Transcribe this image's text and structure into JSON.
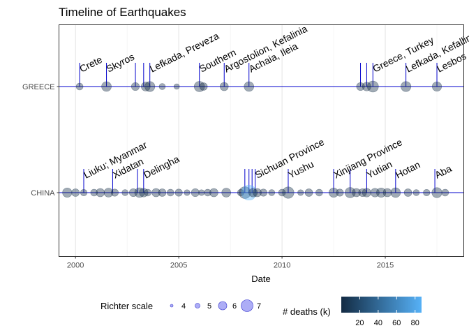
{
  "chart_data": {
    "type": "scatter",
    "title": "Timeline of Earthquakes",
    "xlabel": "Date",
    "ylabel": "",
    "xlim": [
      1999.2,
      2018.8
    ],
    "x_ticks": [
      2000,
      2005,
      2010,
      2015
    ],
    "categories": [
      "CHINA",
      "GREECE"
    ],
    "grid": true,
    "accent_color": "#0000cc",
    "points": [
      {
        "country": "GREECE",
        "x": 2000.2,
        "mag": 5.6,
        "deaths": 0
      },
      {
        "country": "GREECE",
        "x": 2001.5,
        "mag": 6.4,
        "deaths": 0
      },
      {
        "country": "GREECE",
        "x": 2002.9,
        "mag": 5.9,
        "deaths": 0
      },
      {
        "country": "GREECE",
        "x": 2003.4,
        "mag": 6.2,
        "deaths": 0
      },
      {
        "country": "GREECE",
        "x": 2003.6,
        "mag": 6.5,
        "deaths": 0
      },
      {
        "country": "GREECE",
        "x": 2004.2,
        "mag": 5.4,
        "deaths": 0
      },
      {
        "country": "GREECE",
        "x": 2004.9,
        "mag": 5.2,
        "deaths": 0
      },
      {
        "country": "GREECE",
        "x": 2006.0,
        "mag": 6.6,
        "deaths": 0
      },
      {
        "country": "GREECE",
        "x": 2006.2,
        "mag": 5.8,
        "deaths": 0
      },
      {
        "country": "GREECE",
        "x": 2007.2,
        "mag": 6.0,
        "deaths": 0
      },
      {
        "country": "GREECE",
        "x": 2008.4,
        "mag": 6.4,
        "deaths": 2
      },
      {
        "country": "GREECE",
        "x": 2013.8,
        "mag": 5.9,
        "deaths": 0
      },
      {
        "country": "GREECE",
        "x": 2014.1,
        "mag": 6.1,
        "deaths": 0
      },
      {
        "country": "GREECE",
        "x": 2014.4,
        "mag": 6.8,
        "deaths": 1
      },
      {
        "country": "GREECE",
        "x": 2016.0,
        "mag": 6.5,
        "deaths": 2
      },
      {
        "country": "GREECE",
        "x": 2017.5,
        "mag": 6.3,
        "deaths": 1
      },
      {
        "country": "CHINA",
        "x": 1999.6,
        "mag": 6.3,
        "deaths": 2
      },
      {
        "country": "CHINA",
        "x": 2000.0,
        "mag": 5.8,
        "deaths": 3
      },
      {
        "country": "CHINA",
        "x": 2000.4,
        "mag": 5.5,
        "deaths": 0
      },
      {
        "country": "CHINA",
        "x": 2000.9,
        "mag": 5.6,
        "deaths": 1
      },
      {
        "country": "CHINA",
        "x": 2001.2,
        "mag": 6.0,
        "deaths": 0
      },
      {
        "country": "CHINA",
        "x": 2001.6,
        "mag": 6.2,
        "deaths": 1
      },
      {
        "country": "CHINA",
        "x": 2001.9,
        "mag": 5.7,
        "deaths": 0
      },
      {
        "country": "CHINA",
        "x": 2002.4,
        "mag": 5.4,
        "deaths": 0
      },
      {
        "country": "CHINA",
        "x": 2002.8,
        "mag": 5.9,
        "deaths": 1
      },
      {
        "country": "CHINA",
        "x": 2003.1,
        "mag": 6.4,
        "deaths": 4
      },
      {
        "country": "CHINA",
        "x": 2003.3,
        "mag": 6.1,
        "deaths": 3
      },
      {
        "country": "CHINA",
        "x": 2003.5,
        "mag": 5.6,
        "deaths": 1
      },
      {
        "country": "CHINA",
        "x": 2003.9,
        "mag": 6.0,
        "deaths": 2
      },
      {
        "country": "CHINA",
        "x": 2004.2,
        "mag": 5.8,
        "deaths": 0
      },
      {
        "country": "CHINA",
        "x": 2004.6,
        "mag": 5.6,
        "deaths": 0
      },
      {
        "country": "CHINA",
        "x": 2005.0,
        "mag": 5.7,
        "deaths": 0
      },
      {
        "country": "CHINA",
        "x": 2005.4,
        "mag": 5.3,
        "deaths": 0
      },
      {
        "country": "CHINA",
        "x": 2005.8,
        "mag": 5.9,
        "deaths": 1
      },
      {
        "country": "CHINA",
        "x": 2006.1,
        "mag": 5.3,
        "deaths": 0
      },
      {
        "country": "CHINA",
        "x": 2006.4,
        "mag": 5.6,
        "deaths": 0
      },
      {
        "country": "CHINA",
        "x": 2006.7,
        "mag": 6.0,
        "deaths": 2
      },
      {
        "country": "CHINA",
        "x": 2007.3,
        "mag": 6.2,
        "deaths": 0
      },
      {
        "country": "CHINA",
        "x": 2008.0,
        "mag": 5.5,
        "deaths": 0
      },
      {
        "country": "CHINA",
        "x": 2008.2,
        "mag": 7.0,
        "deaths": 0
      },
      {
        "country": "CHINA",
        "x": 2008.4,
        "mag": 7.9,
        "deaths": 87
      },
      {
        "country": "CHINA",
        "x": 2008.6,
        "mag": 6.1,
        "deaths": 1
      },
      {
        "country": "CHINA",
        "x": 2008.8,
        "mag": 6.0,
        "deaths": 0
      },
      {
        "country": "CHINA",
        "x": 2009.1,
        "mag": 5.7,
        "deaths": 0
      },
      {
        "country": "CHINA",
        "x": 2009.5,
        "mag": 5.4,
        "deaths": 0
      },
      {
        "country": "CHINA",
        "x": 2010.0,
        "mag": 5.6,
        "deaths": 0
      },
      {
        "country": "CHINA",
        "x": 2010.3,
        "mag": 6.9,
        "deaths": 3
      },
      {
        "country": "CHINA",
        "x": 2010.9,
        "mag": 5.3,
        "deaths": 0
      },
      {
        "country": "CHINA",
        "x": 2011.3,
        "mag": 5.8,
        "deaths": 0
      },
      {
        "country": "CHINA",
        "x": 2011.8,
        "mag": 5.6,
        "deaths": 0
      },
      {
        "country": "CHINA",
        "x": 2012.5,
        "mag": 6.3,
        "deaths": 1
      },
      {
        "country": "CHINA",
        "x": 2012.8,
        "mag": 5.7,
        "deaths": 0
      },
      {
        "country": "CHINA",
        "x": 2013.3,
        "mag": 6.6,
        "deaths": 1
      },
      {
        "country": "CHINA",
        "x": 2013.6,
        "mag": 6.0,
        "deaths": 0
      },
      {
        "country": "CHINA",
        "x": 2013.9,
        "mag": 5.9,
        "deaths": 0
      },
      {
        "country": "CHINA",
        "x": 2014.1,
        "mag": 6.1,
        "deaths": 0
      },
      {
        "country": "CHINA",
        "x": 2014.5,
        "mag": 6.1,
        "deaths": 1
      },
      {
        "country": "CHINA",
        "x": 2014.8,
        "mag": 6.3,
        "deaths": 2
      },
      {
        "country": "CHINA",
        "x": 2015.1,
        "mag": 6.0,
        "deaths": 0
      },
      {
        "country": "CHINA",
        "x": 2015.5,
        "mag": 6.4,
        "deaths": 1
      },
      {
        "country": "CHINA",
        "x": 2016.1,
        "mag": 5.8,
        "deaths": 0
      },
      {
        "country": "CHINA",
        "x": 2016.5,
        "mag": 5.4,
        "deaths": 0
      },
      {
        "country": "CHINA",
        "x": 2017.0,
        "mag": 5.5,
        "deaths": 0
      },
      {
        "country": "CHINA",
        "x": 2017.5,
        "mag": 6.5,
        "deaths": 2
      },
      {
        "country": "CHINA",
        "x": 2017.9,
        "mag": 5.6,
        "deaths": 0
      }
    ],
    "annotations": [
      {
        "country": "GREECE",
        "x": 2000.2,
        "label": "Crete"
      },
      {
        "country": "GREECE",
        "x": 2001.5,
        "label": "Skyros"
      },
      {
        "country": "GREECE",
        "x": 2002.9,
        "label": ""
      },
      {
        "country": "GREECE",
        "x": 2003.3,
        "label": ""
      },
      {
        "country": "GREECE",
        "x": 2003.6,
        "label": "Lefkada, Preveza"
      },
      {
        "country": "GREECE",
        "x": 2006.0,
        "label": "Southern"
      },
      {
        "country": "GREECE",
        "x": 2007.2,
        "label": "Argostolion, Kefalinia"
      },
      {
        "country": "GREECE",
        "x": 2008.4,
        "label": "Achaia, Ileia"
      },
      {
        "country": "GREECE",
        "x": 2013.8,
        "label": ""
      },
      {
        "country": "GREECE",
        "x": 2014.1,
        "label": ""
      },
      {
        "country": "GREECE",
        "x": 2014.4,
        "label": "Greece, Turkey"
      },
      {
        "country": "GREECE",
        "x": 2016.0,
        "label": "Lefkada, Kefallinia"
      },
      {
        "country": "GREECE",
        "x": 2017.5,
        "label": "Lesbos"
      },
      {
        "country": "CHINA",
        "x": 2000.4,
        "label": "Liuku; Myanmar"
      },
      {
        "country": "CHINA",
        "x": 2001.8,
        "label": "Xidatan"
      },
      {
        "country": "CHINA",
        "x": 2003.0,
        "label": ""
      },
      {
        "country": "CHINA",
        "x": 2003.3,
        "label": "Delingha"
      },
      {
        "country": "CHINA",
        "x": 2008.2,
        "label": ""
      },
      {
        "country": "CHINA",
        "x": 2008.4,
        "label": ""
      },
      {
        "country": "CHINA",
        "x": 2008.55,
        "label": ""
      },
      {
        "country": "CHINA",
        "x": 2008.7,
        "label": "Sichuan Province"
      },
      {
        "country": "CHINA",
        "x": 2010.3,
        "label": "Yushu"
      },
      {
        "country": "CHINA",
        "x": 2012.5,
        "label": "Xinjiang Province"
      },
      {
        "country": "CHINA",
        "x": 2013.3,
        "label": ""
      },
      {
        "country": "CHINA",
        "x": 2014.1,
        "label": "Yutian"
      },
      {
        "country": "CHINA",
        "x": 2015.5,
        "label": "Hotan"
      },
      {
        "country": "CHINA",
        "x": 2017.4,
        "label": "Aba"
      }
    ],
    "legend": {
      "size_title": "Richter scale",
      "size_items": [
        {
          "label": "4",
          "value": 4
        },
        {
          "label": "5",
          "value": 5
        },
        {
          "label": "6",
          "value": 6
        },
        {
          "label": "7",
          "value": 7
        }
      ],
      "color_title": "# deaths (k)",
      "color_ticks": [
        "20",
        "40",
        "60",
        "80"
      ],
      "color_low": "#132B43",
      "color_high": "#56B1F7",
      "color_range": [
        0,
        87
      ]
    }
  }
}
